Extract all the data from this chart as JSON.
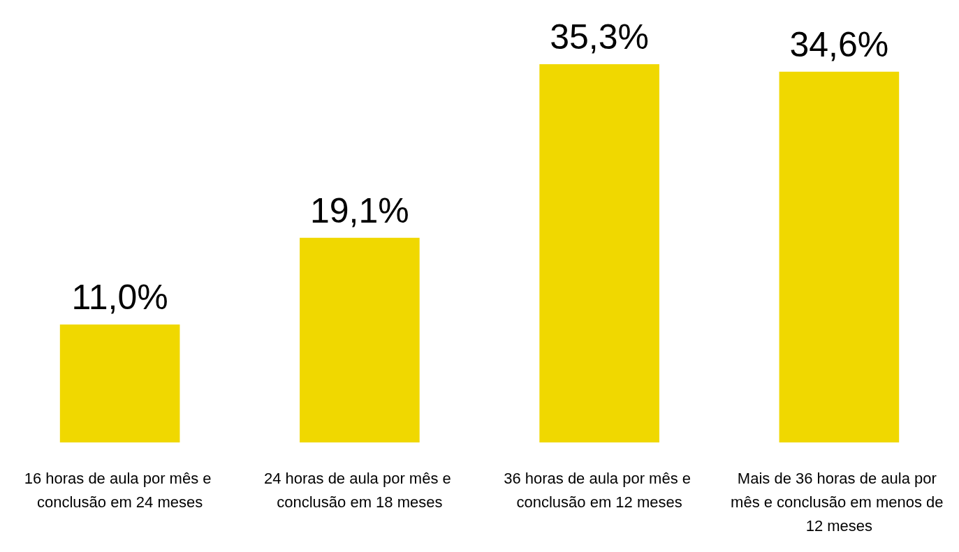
{
  "chart_data": {
    "type": "bar",
    "categories": [
      "16 horas de aula por mês e conclusão em 24 meses",
      "24 horas de aula por mês e conclusão em 18 meses",
      "36 horas de aula por mês e conclusão em 12 meses",
      "Mais de 36 horas de aula por mês e conclusão em menos de 12 meses"
    ],
    "values": [
      11.0,
      19.1,
      35.3,
      34.6
    ],
    "value_labels": [
      "11,0%",
      "19,1%",
      "35,3%",
      "34,6%"
    ],
    "color": "#f0d800"
  }
}
